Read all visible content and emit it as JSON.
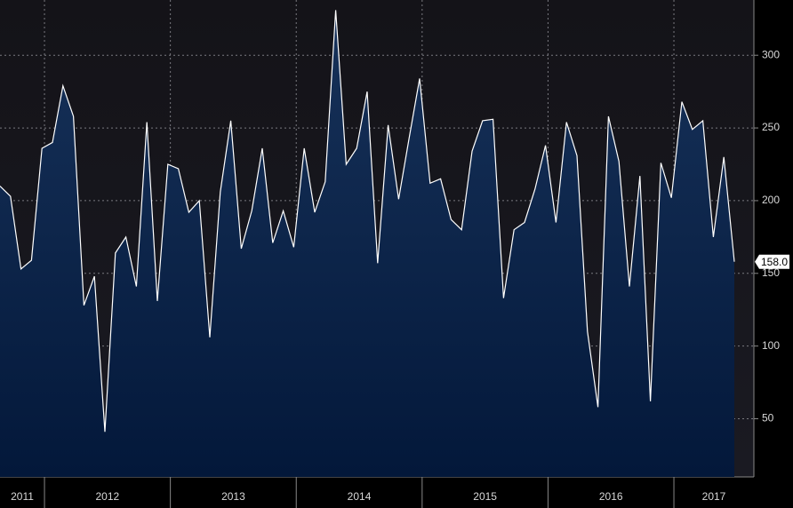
{
  "chart_data": {
    "type": "area",
    "values": [
      210,
      203,
      153,
      159,
      236,
      240,
      279,
      258,
      128,
      148,
      41,
      164,
      175,
      141,
      254,
      131,
      225,
      222,
      192,
      200,
      106,
      206,
      255,
      167,
      193,
      236,
      171,
      193,
      168,
      236,
      192,
      213,
      331,
      225,
      236,
      275,
      157,
      252,
      201,
      243,
      284,
      212,
      215,
      187,
      180,
      234,
      255,
      256,
      133,
      180,
      185,
      208,
      238,
      185,
      254,
      231,
      110,
      58,
      258,
      227,
      141,
      217,
      62,
      226,
      202,
      268,
      249,
      255,
      175,
      230,
      158
    ],
    "last_label": "158.0",
    "years": [
      "2011",
      "2012",
      "2013",
      "2014",
      "2015",
      "2016",
      "2017"
    ],
    "ylim": [
      10,
      338
    ],
    "yticks": [
      50,
      100,
      150,
      200,
      250,
      300
    ],
    "grid": true,
    "color": "#ffffff",
    "fill": "#0c2a52"
  }
}
